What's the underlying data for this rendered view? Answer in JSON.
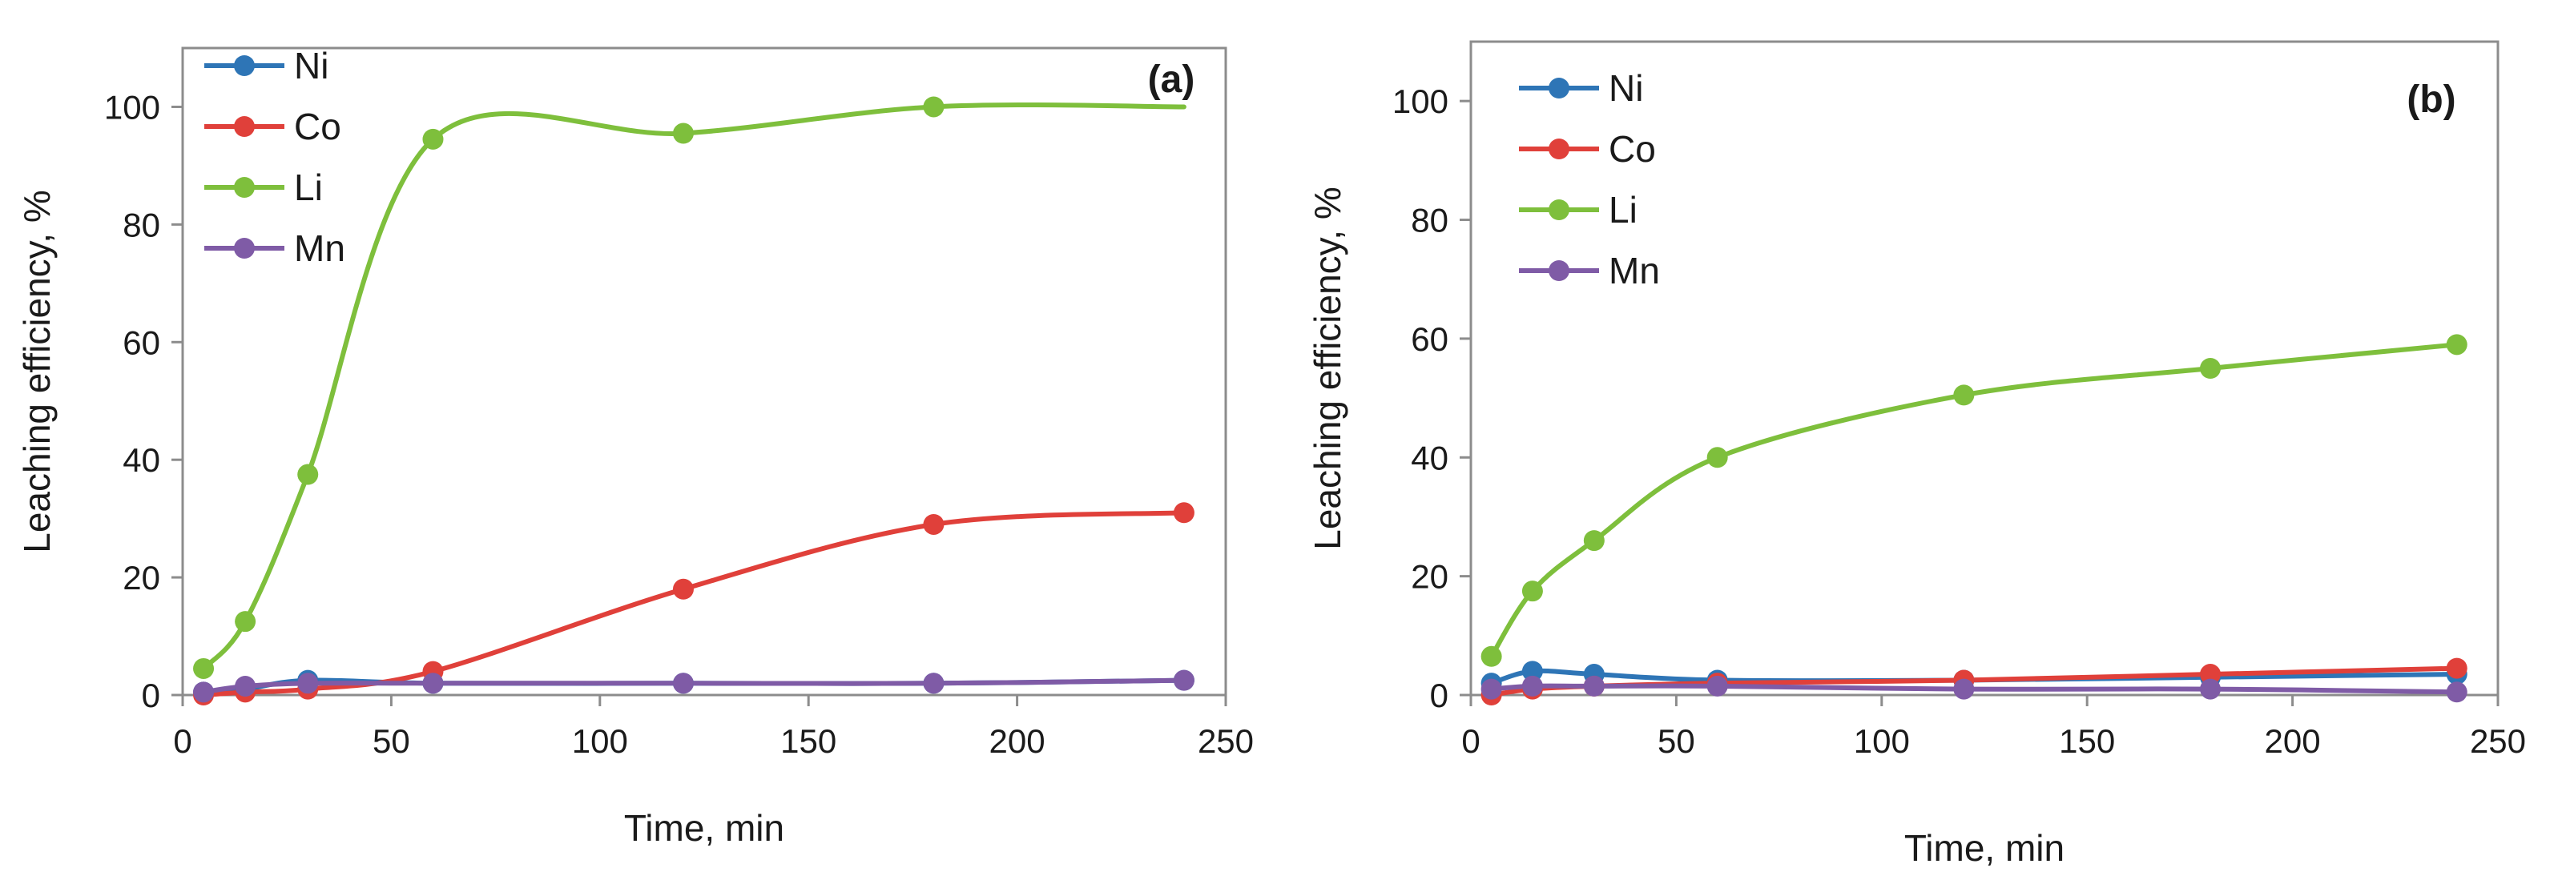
{
  "chart_data": [
    {
      "type": "line",
      "panel_label": "(a)",
      "xlabel": "Time, min",
      "ylabel": "Leaching efficiency, %",
      "xlim": [
        0,
        250
      ],
      "ylim": [
        0,
        110
      ],
      "xticks": [
        0,
        50,
        100,
        150,
        200,
        250
      ],
      "yticks": [
        0,
        20,
        40,
        60,
        80,
        100
      ],
      "smooth": true,
      "legend_position": "top-left",
      "grid": false,
      "series": [
        {
          "name": "Ni",
          "color": "#2e75b6",
          "x": [
            5,
            15,
            30,
            60,
            120,
            180,
            240
          ],
          "y": [
            0.5,
            1.0,
            2.5,
            2.0,
            2.0,
            2.0,
            2.5
          ]
        },
        {
          "name": "Co",
          "color": "#e0403a",
          "x": [
            5,
            15,
            30,
            60,
            120,
            180,
            240
          ],
          "y": [
            0.0,
            0.5,
            1.0,
            4.0,
            18.0,
            29.0,
            31.0
          ]
        },
        {
          "name": "Li",
          "color": "#7ebf3c",
          "x": [
            5,
            15,
            30,
            60,
            120,
            180,
            240
          ],
          "y": [
            4.5,
            12.5,
            37.5,
            94.5,
            95.5,
            100.0,
            100.0
          ],
          "last_marker": false
        },
        {
          "name": "Mn",
          "color": "#7f5ba6",
          "x": [
            5,
            15,
            30,
            60,
            120,
            180,
            240
          ],
          "y": [
            0.5,
            1.5,
            2.0,
            2.0,
            2.0,
            2.0,
            2.5
          ]
        }
      ]
    },
    {
      "type": "line",
      "panel_label": "(b)",
      "xlabel": "Time, min",
      "ylabel": "Leaching efficiency, %",
      "xlim": [
        0,
        250
      ],
      "ylim": [
        0,
        110
      ],
      "xticks": [
        0,
        50,
        100,
        150,
        200,
        250
      ],
      "yticks": [
        0,
        20,
        40,
        60,
        80,
        100
      ],
      "smooth": true,
      "legend_position": "top-left",
      "grid": false,
      "series": [
        {
          "name": "Ni",
          "color": "#2e75b6",
          "x": [
            5,
            15,
            30,
            60,
            120,
            180,
            240
          ],
          "y": [
            2.0,
            4.0,
            3.5,
            2.5,
            2.5,
            3.0,
            3.5
          ]
        },
        {
          "name": "Co",
          "color": "#e0403a",
          "x": [
            5,
            15,
            30,
            60,
            120,
            180,
            240
          ],
          "y": [
            0.0,
            1.0,
            1.5,
            2.0,
            2.5,
            3.5,
            4.5
          ]
        },
        {
          "name": "Li",
          "color": "#7ebf3c",
          "x": [
            5,
            15,
            30,
            60,
            120,
            180,
            240
          ],
          "y": [
            6.5,
            17.5,
            26.0,
            40.0,
            50.5,
            55.0,
            59.0
          ]
        },
        {
          "name": "Mn",
          "color": "#7f5ba6",
          "x": [
            5,
            15,
            30,
            60,
            120,
            180,
            240
          ],
          "y": [
            1.0,
            1.5,
            1.5,
            1.5,
            1.0,
            1.0,
            0.5
          ]
        }
      ]
    }
  ]
}
